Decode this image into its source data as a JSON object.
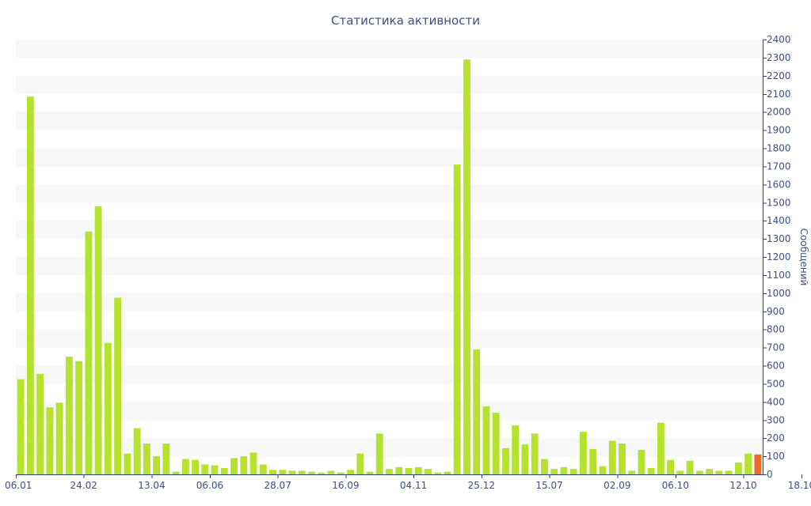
{
  "chart_data": {
    "type": "bar",
    "title": "Статистика активности",
    "xlabel": "",
    "ylabel": "Сообщений",
    "ylim": [
      0,
      2400
    ],
    "yticks": [
      0,
      100,
      200,
      300,
      400,
      500,
      600,
      700,
      800,
      900,
      1000,
      1100,
      1200,
      1300,
      1400,
      1500,
      1600,
      1700,
      1800,
      1900,
      2000,
      2100,
      2200,
      2300,
      2400
    ],
    "grid": true,
    "legend": "none",
    "x_tick_labels": [
      {
        "label": "06.01",
        "index": 0
      },
      {
        "label": "24.02",
        "index": 7
      },
      {
        "label": "13.04",
        "index": 14
      },
      {
        "label": "06.06",
        "index": 20
      },
      {
        "label": "28.07",
        "index": 27
      },
      {
        "label": "16.09",
        "index": 34
      },
      {
        "label": "04.11",
        "index": 41
      },
      {
        "label": "25.12",
        "index": 48
      },
      {
        "label": "15.07",
        "index": 55
      },
      {
        "label": "02.09",
        "index": 62
      },
      {
        "label": "06.10",
        "index": 68
      },
      {
        "label": "12.10",
        "index": 75
      },
      {
        "label": "18.10",
        "index": 81
      }
    ],
    "values": [
      525,
      2085,
      555,
      370,
      395,
      650,
      625,
      1340,
      1480,
      725,
      975,
      115,
      255,
      170,
      100,
      170,
      15,
      85,
      80,
      55,
      50,
      35,
      90,
      100,
      120,
      55,
      25,
      25,
      20,
      20,
      15,
      10,
      20,
      10,
      25,
      115,
      15,
      225,
      30,
      40,
      35,
      40,
      30,
      10,
      15,
      1710,
      2290,
      690,
      375,
      340,
      145,
      270,
      165,
      225,
      85,
      30,
      40,
      30,
      235,
      140,
      45,
      185,
      170,
      20,
      135,
      35,
      285,
      80,
      20,
      75,
      20,
      30,
      20,
      20,
      65,
      115,
      110
    ],
    "highlight": {
      "index": 76,
      "value": 110,
      "color": "#f06a27"
    },
    "colors": {
      "bar": "#b5e12f",
      "highlight": "#f06a27",
      "axis": "#2f3f7f",
      "text": "#3e4d8a",
      "band": "#f7f7f7"
    }
  }
}
